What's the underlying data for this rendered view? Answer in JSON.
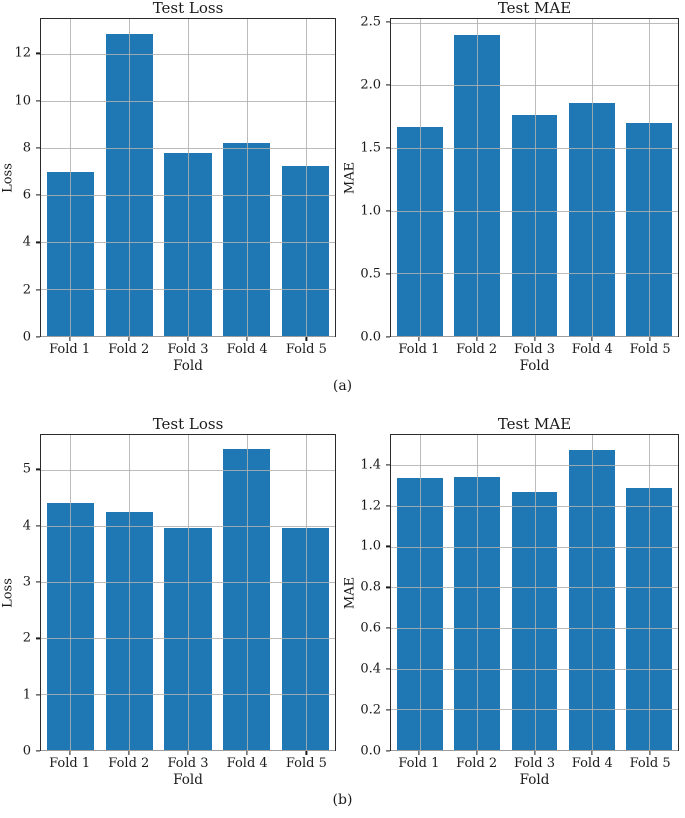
{
  "figure": {
    "captions": {
      "a": "(a)",
      "b": "(b)"
    }
  },
  "colors": {
    "bar": "#1f77b4",
    "grid": "#b0b0b0",
    "spine": "#2b2b2b",
    "text": "#1a1a1a",
    "background": "#ffffff"
  },
  "chart_data": [
    {
      "type": "bar",
      "panel": "a",
      "title": "Test Loss",
      "xlabel": "Fold",
      "ylabel": "Loss",
      "categories": [
        "Fold 1",
        "Fold 2",
        "Fold 3",
        "Fold 4",
        "Fold 5"
      ],
      "values": [
        7.0,
        12.85,
        7.8,
        8.2,
        7.25
      ],
      "ylim": [
        0,
        13.5
      ],
      "yticks": [
        0,
        2,
        4,
        6,
        8,
        10,
        12
      ],
      "ytick_labels": [
        "0",
        "2",
        "4",
        "6",
        "8",
        "10",
        "12"
      ],
      "bar_color": "#1f77b4",
      "bar_width_fraction": 0.8,
      "grid": true,
      "legend_position": "none"
    },
    {
      "type": "bar",
      "panel": "a",
      "title": "Test MAE",
      "xlabel": "Fold",
      "ylabel": "MAE",
      "categories": [
        "Fold 1",
        "Fold 2",
        "Fold 3",
        "Fold 4",
        "Fold 5"
      ],
      "values": [
        1.67,
        2.4,
        1.76,
        1.86,
        1.7
      ],
      "ylim": [
        0,
        2.53
      ],
      "yticks": [
        0,
        0.5,
        1.0,
        1.5,
        2.0,
        2.5
      ],
      "ytick_labels": [
        "0.0",
        "0.5",
        "1.0",
        "1.5",
        "2.0",
        "2.5"
      ],
      "bar_color": "#1f77b4",
      "bar_width_fraction": 0.8,
      "grid": true,
      "legend_position": "none"
    },
    {
      "type": "bar",
      "panel": "b",
      "title": "Test Loss",
      "xlabel": "Fold",
      "ylabel": "Loss",
      "categories": [
        "Fold 1",
        "Fold 2",
        "Fold 3",
        "Fold 4",
        "Fold 5"
      ],
      "values": [
        4.42,
        4.26,
        3.96,
        5.38,
        3.97
      ],
      "ylim": [
        0,
        5.63
      ],
      "yticks": [
        0,
        1,
        2,
        3,
        4,
        5
      ],
      "ytick_labels": [
        "0",
        "1",
        "2",
        "3",
        "4",
        "5"
      ],
      "bar_color": "#1f77b4",
      "bar_width_fraction": 0.8,
      "grid": true,
      "legend_position": "none"
    },
    {
      "type": "bar",
      "panel": "b",
      "title": "Test MAE",
      "xlabel": "Fold",
      "ylabel": "MAE",
      "categories": [
        "Fold 1",
        "Fold 2",
        "Fold 3",
        "Fold 4",
        "Fold 5"
      ],
      "values": [
        1.34,
        1.345,
        1.27,
        1.475,
        1.29
      ],
      "ylim": [
        0,
        1.55
      ],
      "yticks": [
        0,
        0.2,
        0.4,
        0.6,
        0.8,
        1.0,
        1.2,
        1.4
      ],
      "ytick_labels": [
        "0.0",
        "0.2",
        "0.4",
        "0.6",
        "0.8",
        "1.0",
        "1.2",
        "1.4"
      ],
      "bar_color": "#1f77b4",
      "bar_width_fraction": 0.8,
      "grid": true,
      "legend_position": "none"
    }
  ]
}
